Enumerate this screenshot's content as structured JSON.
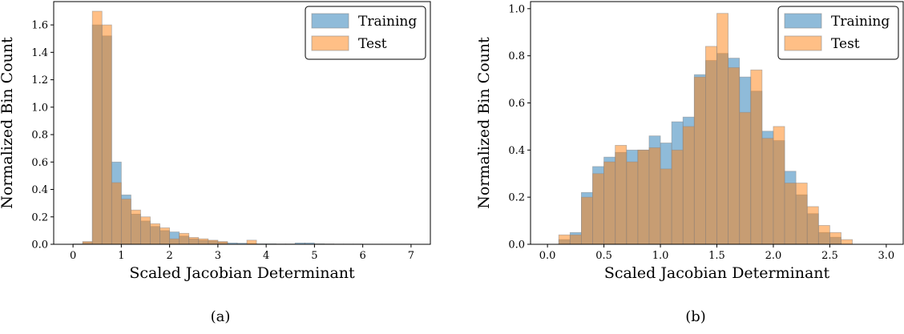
{
  "colors": {
    "training": "#1f77b4",
    "test": "#ff7f0e",
    "bar_opacity": 0.5
  },
  "captions": [
    "(a)",
    "(b)"
  ],
  "chart_data": [
    {
      "type": "bar",
      "subtype": "overlaid-histogram",
      "xlabel": "Scaled Jacobian Determinant",
      "ylabel": "Normalized Bin Count",
      "xlim": [
        -0.4,
        7.4
      ],
      "ylim": [
        0,
        1.77
      ],
      "xticks": [
        0,
        1,
        2,
        3,
        4,
        5,
        6,
        7
      ],
      "xtick_labels": [
        "0",
        "1",
        "2",
        "3",
        "4",
        "5",
        "6",
        "7"
      ],
      "yticks": [
        0.0,
        0.2,
        0.4,
        0.6,
        0.8,
        1.0,
        1.2,
        1.4,
        1.6
      ],
      "ytick_labels": [
        "0.0",
        "0.2",
        "0.4",
        "0.6",
        "0.8",
        "1.0",
        "1.2",
        "1.4",
        "1.6"
      ],
      "grid": false,
      "legend": {
        "placement": "top-right",
        "entries": [
          "Training",
          "Test"
        ]
      },
      "bin_edges": [
        0.0,
        0.2,
        0.4,
        0.6,
        0.8,
        1.0,
        1.2,
        1.4,
        1.6,
        1.8,
        2.0,
        2.2,
        2.4,
        2.6,
        2.8,
        3.0,
        3.2,
        3.4,
        3.6,
        3.8,
        4.0,
        4.2,
        4.4,
        4.6,
        4.8,
        5.0,
        5.2,
        5.4,
        5.6,
        5.8,
        6.0,
        6.2,
        6.4,
        6.6,
        6.8,
        7.0
      ],
      "series": [
        {
          "name": "Training",
          "values": [
            0.003,
            0.015,
            1.6,
            1.52,
            0.6,
            0.36,
            0.22,
            0.17,
            0.13,
            0.1,
            0.09,
            0.06,
            0.04,
            0.03,
            0.025,
            0.015,
            0.01,
            0.008,
            0.005,
            0.004,
            0.004,
            0.003,
            0.003,
            0.01,
            0.01,
            0.004,
            0.003,
            0.002,
            0.002,
            0.002,
            0.001,
            0.001,
            0.001,
            0.001,
            0.001
          ]
        },
        {
          "name": "Test",
          "values": [
            0.0,
            0.02,
            1.7,
            1.6,
            0.45,
            0.33,
            0.25,
            0.2,
            0.15,
            0.12,
            0.04,
            0.08,
            0.05,
            0.04,
            0.03,
            0.02,
            0.0,
            0.0,
            0.03,
            0.0,
            0.0,
            0.0,
            0.0,
            0.0,
            0.0,
            0.0,
            0.0,
            0.0,
            0.0,
            0.0,
            0.0,
            0.0,
            0.0,
            0.0,
            0.0
          ]
        }
      ]
    },
    {
      "type": "bar",
      "subtype": "overlaid-histogram",
      "xlabel": "Scaled Jacobian Determinant",
      "ylabel": "Normalized Bin Count",
      "xlim": [
        -0.15,
        3.15
      ],
      "ylim": [
        0,
        1.03
      ],
      "xticks": [
        0.0,
        0.5,
        1.0,
        1.5,
        2.0,
        2.5,
        3.0
      ],
      "xtick_labels": [
        "0.0",
        "0.5",
        "1.0",
        "1.5",
        "2.0",
        "2.5",
        "3.0"
      ],
      "yticks": [
        0.0,
        0.2,
        0.4,
        0.6,
        0.8,
        1.0
      ],
      "ytick_labels": [
        "0.0",
        "0.2",
        "0.4",
        "0.6",
        "0.8",
        "1.0"
      ],
      "grid": false,
      "legend": {
        "placement": "top-right",
        "entries": [
          "Training",
          "Test"
        ]
      },
      "bin_edges": [
        0.1,
        0.2,
        0.3,
        0.4,
        0.5,
        0.6,
        0.7,
        0.8,
        0.9,
        1.0,
        1.1,
        1.2,
        1.3,
        1.4,
        1.5,
        1.6,
        1.7,
        1.8,
        1.9,
        2.0,
        2.1,
        2.2,
        2.3,
        2.4,
        2.5,
        2.6,
        2.7
      ],
      "series": [
        {
          "name": "Training",
          "values": [
            0.02,
            0.05,
            0.22,
            0.33,
            0.37,
            0.39,
            0.4,
            0.4,
            0.46,
            0.43,
            0.52,
            0.54,
            0.72,
            0.78,
            0.81,
            0.79,
            0.71,
            0.65,
            0.48,
            0.44,
            0.31,
            0.21,
            0.13,
            0.05,
            0.03,
            0.0
          ]
        },
        {
          "name": "Test",
          "values": [
            0.04,
            0.04,
            0.2,
            0.3,
            0.35,
            0.42,
            0.35,
            0.4,
            0.41,
            0.32,
            0.4,
            0.5,
            0.71,
            0.84,
            0.98,
            0.75,
            0.56,
            0.74,
            0.45,
            0.5,
            0.26,
            0.26,
            0.16,
            0.08,
            0.05,
            0.02
          ]
        }
      ]
    }
  ]
}
